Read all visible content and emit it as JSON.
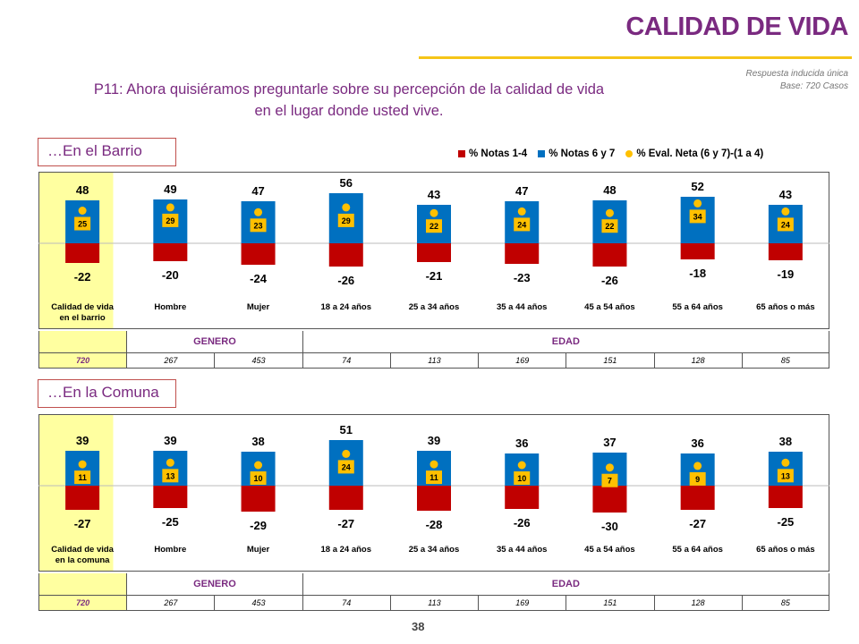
{
  "header": {
    "title": "CALIDAD DE VIDA",
    "meta_line1": "Respuesta inducida única",
    "meta_line2": "Base: 720 Casos"
  },
  "question_line1": "P11: Ahora quisiéramos preguntarle sobre su percepción de la calidad de vida",
  "question_line2": "en el lugar donde usted vive.",
  "legend": [
    {
      "label": "% Notas 1-4",
      "color": "#c00000",
      "shape": "square"
    },
    {
      "label": "% Notas 6 y 7",
      "color": "#0070c0",
      "shape": "square"
    },
    {
      "label": "% Eval. Neta (6 y 7)-(1 a 4)",
      "color": "#ffc000",
      "shape": "dot"
    }
  ],
  "colors": {
    "negative": "#c00000",
    "positive": "#0070c0",
    "net": "#ffc000",
    "accent": "#7a2a80",
    "rule": "#f5c518",
    "highlight": "#ffffa0"
  },
  "groups": {
    "genero": "GENERO",
    "edad": "EDAD"
  },
  "page_number": "38",
  "chart_data": [
    {
      "type": "bar",
      "section_label": "…En el Barrio",
      "first_label_lines": [
        "Calidad de vida",
        "en el barrio"
      ],
      "categories": [
        "Calidad de vida en el barrio",
        "Hombre",
        "Mujer",
        "18 a 24 años",
        "25 a 34 años",
        "35 a 44 años",
        "45 a 54 años",
        "55 a 64 años",
        "65 años o más"
      ],
      "series": [
        {
          "name": "% Notas 1-4",
          "values": [
            -22,
            -20,
            -24,
            -26,
            -21,
            -23,
            -26,
            -18,
            -19
          ]
        },
        {
          "name": "% Notas 6 y 7",
          "values": [
            48,
            49,
            47,
            56,
            43,
            47,
            48,
            52,
            43
          ]
        },
        {
          "name": "% Eval. Neta (6 y 7)-(1 a 4)",
          "values": [
            25,
            29,
            23,
            29,
            22,
            24,
            22,
            34,
            24
          ]
        }
      ],
      "base": [
        "720",
        "267",
        "453",
        "74",
        "113",
        "169",
        "151",
        "128",
        "85"
      ]
    },
    {
      "type": "bar",
      "section_label": "…En la Comuna",
      "first_label_lines": [
        "Calidad de vida",
        "en la comuna"
      ],
      "categories": [
        "Calidad de vida en la comuna",
        "Hombre",
        "Mujer",
        "18 a 24 años",
        "25 a 34 años",
        "35 a 44 años",
        "45 a 54 años",
        "55 a 64 años",
        "65 años o más"
      ],
      "series": [
        {
          "name": "% Notas 1-4",
          "values": [
            -27,
            -25,
            -29,
            -27,
            -28,
            -26,
            -30,
            -27,
            -25
          ]
        },
        {
          "name": "% Notas 6 y 7",
          "values": [
            39,
            39,
            38,
            51,
            39,
            36,
            37,
            36,
            38
          ]
        },
        {
          "name": "% Eval. Neta (6 y 7)-(1 a 4)",
          "values": [
            11,
            13,
            10,
            24,
            11,
            10,
            7,
            9,
            13
          ]
        }
      ],
      "base": [
        "720",
        "267",
        "453",
        "74",
        "113",
        "169",
        "151",
        "128",
        "85"
      ]
    }
  ]
}
